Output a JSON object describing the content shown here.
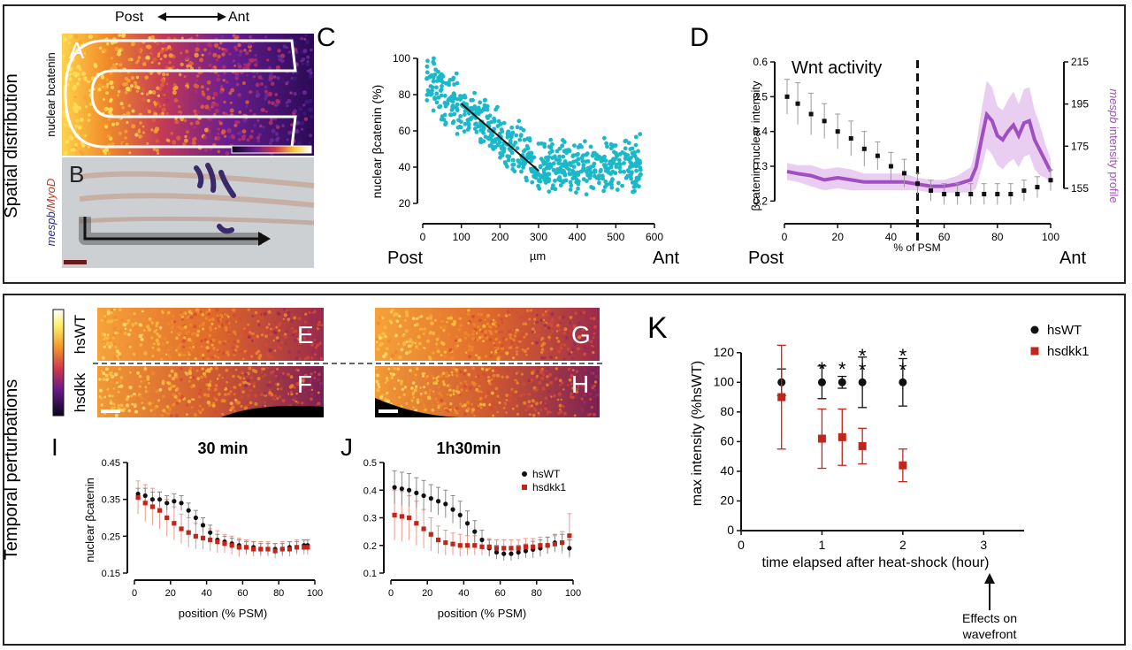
{
  "sections": {
    "top": "Spatial distribution",
    "bottom": "Temporal perturbations"
  },
  "orientation": {
    "post": "Post",
    "ant": "Ant"
  },
  "panel_letters": {
    "A": "A",
    "B": "B",
    "C": "C",
    "D": "D",
    "E": "E",
    "F": "F",
    "G": "G",
    "H": "H",
    "I": "I",
    "J": "J",
    "K": "K"
  },
  "image_labels": {
    "a_stain": "nuclear bcatenin",
    "b_stain_1": "mespb",
    "b_stain_sep": "/",
    "b_stain_2": "MyoD",
    "e_row": "hsWT",
    "f_row": "hsdkk"
  },
  "colors": {
    "cyan": "#1bb8c9",
    "purple": "#a04fc0",
    "purple_light": "#e6c6f0",
    "red": "#c0261b",
    "black": "#111111",
    "gray": "#9a9a9a"
  },
  "chart_data": [
    {
      "id": "C",
      "type": "scatter",
      "xlabel": "µm",
      "ylabel": "nuclear βcatenin (%)",
      "xlim": [
        0,
        600
      ],
      "ylim": [
        20,
        100
      ],
      "xticks": [
        0,
        100,
        200,
        300,
        400,
        500,
        600
      ],
      "yticks": [
        20,
        40,
        60,
        80,
        100
      ],
      "trend_line": {
        "x": [
          100,
          300
        ],
        "y": [
          75,
          38
        ]
      },
      "point_cloud": {
        "x_range": [
          10,
          565
        ],
        "plateau": 40,
        "peak": 88
      }
    },
    {
      "id": "D",
      "type": "line",
      "annotation": "Wnt activity",
      "xlabel": "% of PSM",
      "ylabel_left": "βcatenin nuclear intensity",
      "ylabel_right_1": "mespb",
      "ylabel_right_2": " intensity profile",
      "xlim": [
        0,
        100
      ],
      "ylim_left": [
        0.15,
        0.6
      ],
      "ylim_right": [
        147,
        215
      ],
      "xticks": [
        0,
        20,
        40,
        60,
        80,
        100
      ],
      "yticks_left": [
        0.2,
        0.3,
        0.4,
        0.5,
        0.6
      ],
      "yticks_right": [
        155,
        175,
        195,
        215
      ],
      "dashed_line_x": 50,
      "series": [
        {
          "axis": "left",
          "x": [
            1,
            5,
            10,
            15,
            20,
            25,
            30,
            35,
            40,
            45,
            50,
            55,
            60,
            65,
            70,
            75,
            80,
            85,
            90,
            95,
            100
          ],
          "y": [
            0.5,
            0.48,
            0.45,
            0.43,
            0.4,
            0.38,
            0.35,
            0.33,
            0.3,
            0.28,
            0.25,
            0.23,
            0.22,
            0.22,
            0.22,
            0.22,
            0.22,
            0.22,
            0.23,
            0.24,
            0.26
          ],
          "err": [
            0.05,
            0.06,
            0.06,
            0.05,
            0.05,
            0.05,
            0.05,
            0.04,
            0.04,
            0.04,
            0.03,
            0.03,
            0.03,
            0.03,
            0.03,
            0.03,
            0.03,
            0.03,
            0.03,
            0.03,
            0.03
          ]
        },
        {
          "axis": "right",
          "x": [
            1,
            5,
            10,
            15,
            20,
            25,
            30,
            35,
            40,
            45,
            50,
            55,
            60,
            65,
            70,
            72,
            74,
            76,
            78,
            80,
            82,
            84,
            86,
            88,
            90,
            92,
            94,
            96,
            98,
            100
          ],
          "y": [
            163,
            162,
            161,
            159,
            160,
            159,
            158,
            158,
            158,
            158,
            157,
            156,
            156,
            157,
            159,
            165,
            178,
            190,
            187,
            180,
            178,
            182,
            185,
            180,
            186,
            187,
            178,
            173,
            168,
            163
          ],
          "err": [
            4,
            4,
            5,
            5,
            5,
            5,
            4,
            4,
            4,
            4,
            3,
            3,
            3,
            4,
            6,
            10,
            14,
            16,
            16,
            14,
            14,
            15,
            16,
            15,
            16,
            16,
            14,
            12,
            8,
            6
          ]
        }
      ]
    },
    {
      "id": "I",
      "type": "line",
      "title": "30 min",
      "xlabel": "position (% PSM)",
      "ylabel": "nuclear βcatenin",
      "xlim": [
        0,
        100
      ],
      "ylim": [
        0.15,
        0.45
      ],
      "xticks": [
        0,
        20,
        40,
        60,
        80,
        100
      ],
      "yticks": [
        0.15,
        0.25,
        0.35,
        0.45
      ],
      "series": [
        {
          "name": "hsWT",
          "x": [
            2,
            6,
            10,
            14,
            18,
            22,
            26,
            30,
            34,
            38,
            42,
            46,
            50,
            54,
            58,
            62,
            66,
            70,
            74,
            78,
            82,
            86,
            90,
            94,
            96
          ],
          "y": [
            0.365,
            0.36,
            0.35,
            0.35,
            0.34,
            0.345,
            0.34,
            0.32,
            0.3,
            0.28,
            0.26,
            0.24,
            0.235,
            0.23,
            0.225,
            0.22,
            0.22,
            0.215,
            0.215,
            0.215,
            0.215,
            0.22,
            0.22,
            0.225,
            0.225
          ],
          "err": [
            0.015,
            0.02,
            0.02,
            0.02,
            0.02,
            0.02,
            0.02,
            0.02,
            0.02,
            0.02,
            0.02,
            0.015,
            0.015,
            0.015,
            0.015,
            0.015,
            0.015,
            0.015,
            0.015,
            0.015,
            0.015,
            0.015,
            0.015,
            0.015,
            0.015
          ]
        },
        {
          "name": "hsdkk1",
          "x": [
            2,
            6,
            10,
            14,
            18,
            22,
            26,
            30,
            34,
            38,
            42,
            46,
            50,
            54,
            58,
            62,
            66,
            70,
            74,
            78,
            82,
            86,
            90,
            94,
            96
          ],
          "y": [
            0.355,
            0.34,
            0.33,
            0.32,
            0.3,
            0.285,
            0.27,
            0.26,
            0.25,
            0.245,
            0.24,
            0.235,
            0.23,
            0.225,
            0.22,
            0.22,
            0.215,
            0.215,
            0.215,
            0.21,
            0.215,
            0.215,
            0.22,
            0.22,
            0.22
          ],
          "err": [
            0.045,
            0.05,
            0.05,
            0.05,
            0.05,
            0.045,
            0.04,
            0.04,
            0.035,
            0.03,
            0.03,
            0.03,
            0.025,
            0.025,
            0.025,
            0.02,
            0.02,
            0.02,
            0.02,
            0.02,
            0.02,
            0.02,
            0.02,
            0.02,
            0.02
          ]
        }
      ]
    },
    {
      "id": "J",
      "type": "line",
      "title": "1h30min",
      "xlabel": "position (% PSM)",
      "xlim": [
        0,
        100
      ],
      "ylim": [
        0.1,
        0.5
      ],
      "xticks": [
        0,
        20,
        40,
        60,
        80,
        100
      ],
      "yticks": [
        0.1,
        0.2,
        0.3,
        0.4,
        0.5
      ],
      "legend_position": "top-right",
      "series": [
        {
          "name": "hsWT",
          "x": [
            2,
            6,
            10,
            14,
            18,
            22,
            26,
            30,
            34,
            38,
            42,
            46,
            50,
            54,
            58,
            62,
            66,
            70,
            74,
            78,
            82,
            86,
            90,
            94,
            98
          ],
          "y": [
            0.41,
            0.405,
            0.4,
            0.39,
            0.38,
            0.37,
            0.36,
            0.35,
            0.33,
            0.31,
            0.28,
            0.25,
            0.22,
            0.19,
            0.175,
            0.17,
            0.17,
            0.175,
            0.18,
            0.185,
            0.19,
            0.2,
            0.21,
            0.21,
            0.19
          ],
          "err": [
            0.06,
            0.06,
            0.06,
            0.055,
            0.055,
            0.05,
            0.05,
            0.05,
            0.05,
            0.05,
            0.045,
            0.04,
            0.035,
            0.03,
            0.025,
            0.025,
            0.025,
            0.025,
            0.025,
            0.03,
            0.03,
            0.03,
            0.03,
            0.03,
            0.03
          ]
        },
        {
          "name": "hsdkk1",
          "x": [
            2,
            6,
            10,
            14,
            18,
            22,
            26,
            30,
            34,
            38,
            42,
            46,
            50,
            54,
            58,
            62,
            66,
            70,
            74,
            78,
            82,
            86,
            90,
            94,
            98
          ],
          "y": [
            0.31,
            0.305,
            0.3,
            0.28,
            0.26,
            0.24,
            0.22,
            0.21,
            0.205,
            0.2,
            0.2,
            0.2,
            0.195,
            0.195,
            0.19,
            0.19,
            0.19,
            0.19,
            0.195,
            0.195,
            0.2,
            0.2,
            0.205,
            0.21,
            0.235
          ],
          "err": [
            0.09,
            0.09,
            0.08,
            0.08,
            0.07,
            0.06,
            0.05,
            0.045,
            0.04,
            0.04,
            0.035,
            0.035,
            0.03,
            0.03,
            0.03,
            0.03,
            0.03,
            0.03,
            0.03,
            0.03,
            0.03,
            0.03,
            0.03,
            0.04,
            0.08
          ]
        }
      ]
    },
    {
      "id": "K",
      "type": "scatter",
      "xlabel": "time elapsed after heat-shock (hour)",
      "ylabel": "max intensity (%hsWT)",
      "xlim": [
        0,
        3.5
      ],
      "ylim": [
        0,
        130
      ],
      "xticks": [
        0,
        1,
        2,
        3
      ],
      "yticks": [
        0,
        20,
        40,
        60,
        80,
        100,
        120
      ],
      "legend_position": "top-right",
      "annotation": "Effects on wavefront",
      "significance": [
        {
          "x": 1.0,
          "stars": "*"
        },
        {
          "x": 1.25,
          "stars": "*"
        },
        {
          "x": 1.5,
          "stars": "**"
        },
        {
          "x": 2.0,
          "stars": "**"
        }
      ],
      "series": [
        {
          "name": "hsWT",
          "x": [
            0.5,
            1.0,
            1.25,
            1.5,
            2.0
          ],
          "y": [
            100,
            100,
            100,
            100,
            100
          ],
          "err": [
            9,
            11,
            4,
            17,
            16
          ]
        },
        {
          "name": "hsdkk1",
          "x": [
            0.5,
            1.0,
            1.25,
            1.5,
            2.0
          ],
          "y": [
            90,
            62,
            63,
            57,
            44
          ],
          "err": [
            35,
            20,
            19,
            12,
            11
          ]
        }
      ]
    }
  ]
}
